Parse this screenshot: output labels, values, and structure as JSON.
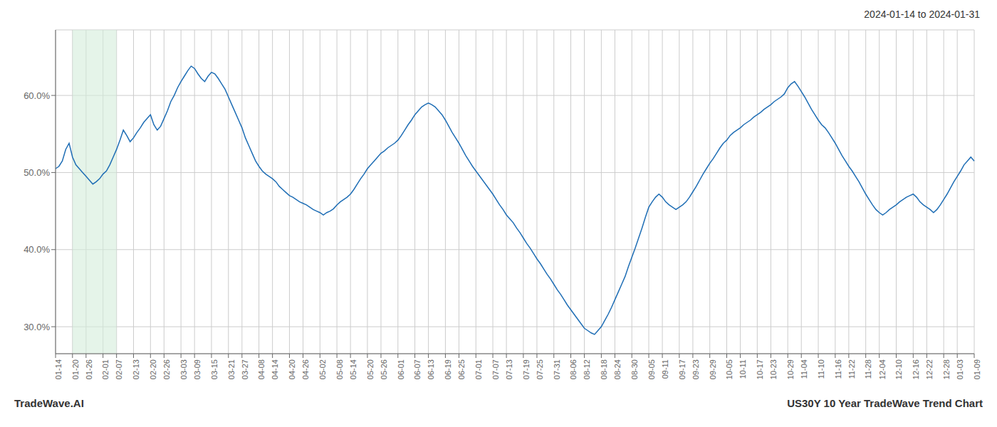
{
  "chart_data": {
    "type": "line",
    "title": "2024-01-14 to 2024-01-31",
    "annotations": [
      "TradeWave.AI",
      "US30Y 10 Year TradeWave Trend Chart"
    ],
    "color": "#1f6eb5",
    "shade": {
      "start": "01-20",
      "end": "02-07",
      "color": "#d4edda"
    },
    "ylim": [
      0.265,
      0.685
    ],
    "yticks": [
      {
        "value": 0.3,
        "label": "30.0%"
      },
      {
        "value": 0.4,
        "label": "40.0%"
      },
      {
        "value": 0.5,
        "label": "50.0%"
      },
      {
        "value": 0.6,
        "label": "60.0%"
      }
    ],
    "grid": true,
    "categories": [
      "01-14",
      null,
      null,
      null,
      null,
      "01-20",
      null,
      null,
      null,
      "01-26",
      null,
      null,
      null,
      null,
      "02-01",
      null,
      null,
      null,
      "02-07",
      null,
      null,
      null,
      null,
      "02-13",
      null,
      null,
      null,
      null,
      "02-20",
      null,
      null,
      null,
      "02-26",
      null,
      null,
      null,
      null,
      "03-03",
      null,
      null,
      null,
      "03-09",
      null,
      null,
      null,
      null,
      "03-15",
      null,
      null,
      null,
      null,
      "03-21",
      null,
      null,
      null,
      "03-27",
      null,
      null,
      null,
      null,
      "04-08",
      null,
      null,
      null,
      "04-14",
      null,
      null,
      null,
      null,
      "04-20",
      null,
      null,
      null,
      "04-26",
      null,
      null,
      null,
      null,
      "05-02",
      null,
      null,
      null,
      null,
      "05-08",
      null,
      null,
      null,
      "05-14",
      null,
      null,
      null,
      null,
      "05-20",
      null,
      null,
      null,
      "05-26",
      null,
      null,
      null,
      null,
      "06-01",
      null,
      null,
      null,
      null,
      "06-07",
      null,
      null,
      null,
      "06-13",
      null,
      null,
      null,
      null,
      "06-19",
      null,
      null,
      null,
      "06-25",
      null,
      null,
      null,
      null,
      "07-01",
      null,
      null,
      null,
      null,
      "07-07",
      null,
      null,
      null,
      "07-13",
      null,
      null,
      null,
      null,
      "07-19",
      null,
      null,
      null,
      "07-25",
      null,
      null,
      null,
      null,
      "07-31",
      null,
      null,
      null,
      null,
      "08-06",
      null,
      null,
      null,
      "08-12",
      null,
      null,
      null,
      null,
      "08-18",
      null,
      null,
      null,
      "08-24",
      null,
      null,
      null,
      null,
      "08-30",
      null,
      null,
      null,
      null,
      "09-05",
      null,
      null,
      null,
      "09-11",
      null,
      null,
      null,
      null,
      "09-17",
      null,
      null,
      null,
      "09-23",
      null,
      null,
      null,
      null,
      "09-29",
      null,
      null,
      null,
      null,
      "10-05",
      null,
      null,
      null,
      "10-11",
      null,
      null,
      null,
      null,
      "10-17",
      null,
      null,
      null,
      "10-23",
      null,
      null,
      null,
      null,
      "10-29",
      null,
      null,
      null,
      "11-04",
      null,
      null,
      null,
      null,
      "11-10",
      null,
      null,
      null,
      null,
      "11-16",
      null,
      null,
      null,
      "11-22",
      null,
      null,
      null,
      null,
      "11-28",
      null,
      null,
      null,
      "12-04",
      null,
      null,
      null,
      null,
      "12-10",
      null,
      null,
      null,
      null,
      "12-16",
      null,
      null,
      null,
      "12-22",
      null,
      null,
      null,
      null,
      "12-28",
      null,
      null,
      null,
      "01-03",
      null,
      null,
      null,
      null,
      "01-09"
    ],
    "values": [
      0.505,
      0.508,
      0.515,
      0.53,
      0.538,
      0.52,
      0.51,
      0.505,
      0.5,
      0.495,
      0.49,
      0.485,
      0.488,
      0.492,
      0.498,
      0.502,
      0.51,
      0.52,
      0.53,
      0.542,
      0.555,
      0.548,
      0.54,
      0.545,
      0.552,
      0.558,
      0.565,
      0.57,
      0.575,
      0.562,
      0.555,
      0.56,
      0.57,
      0.58,
      0.592,
      0.6,
      0.61,
      0.618,
      0.625,
      0.632,
      0.638,
      0.635,
      0.628,
      0.622,
      0.618,
      0.625,
      0.63,
      0.628,
      0.622,
      0.615,
      0.608,
      0.598,
      0.588,
      0.578,
      0.568,
      0.558,
      0.545,
      0.535,
      0.525,
      0.515,
      0.508,
      0.502,
      0.498,
      0.495,
      0.492,
      0.488,
      0.482,
      0.478,
      0.474,
      0.47,
      0.468,
      0.465,
      0.462,
      0.46,
      0.458,
      0.455,
      0.452,
      0.45,
      0.448,
      0.445,
      0.448,
      0.45,
      0.453,
      0.458,
      0.462,
      0.465,
      0.468,
      0.472,
      0.478,
      0.485,
      0.492,
      0.498,
      0.505,
      0.51,
      0.515,
      0.52,
      0.525,
      0.528,
      0.532,
      0.535,
      0.538,
      0.542,
      0.548,
      0.555,
      0.562,
      0.568,
      0.575,
      0.58,
      0.585,
      0.588,
      0.59,
      0.588,
      0.585,
      0.58,
      0.575,
      0.568,
      0.56,
      0.552,
      0.545,
      0.538,
      0.53,
      0.522,
      0.515,
      0.508,
      0.502,
      0.496,
      0.49,
      0.484,
      0.478,
      0.472,
      0.465,
      0.458,
      0.452,
      0.445,
      0.44,
      0.435,
      0.428,
      0.422,
      0.415,
      0.408,
      0.402,
      0.395,
      0.388,
      0.382,
      0.375,
      0.368,
      0.362,
      0.355,
      0.348,
      0.342,
      0.335,
      0.328,
      0.322,
      0.316,
      0.31,
      0.304,
      0.298,
      0.295,
      0.292,
      0.29,
      0.295,
      0.3,
      0.308,
      0.316,
      0.325,
      0.335,
      0.345,
      0.355,
      0.365,
      0.378,
      0.39,
      0.402,
      0.415,
      0.428,
      0.442,
      0.455,
      0.462,
      0.468,
      0.472,
      0.468,
      0.462,
      0.458,
      0.455,
      0.452,
      0.455,
      0.458,
      0.462,
      0.468,
      0.475,
      0.482,
      0.49,
      0.498,
      0.505,
      0.512,
      0.518,
      0.525,
      0.532,
      0.538,
      0.542,
      0.548,
      0.552,
      0.555,
      0.558,
      0.562,
      0.565,
      0.568,
      0.572,
      0.575,
      0.578,
      0.582,
      0.585,
      0.588,
      0.592,
      0.595,
      0.598,
      0.602,
      0.61,
      0.615,
      0.618,
      0.612,
      0.605,
      0.598,
      0.59,
      0.582,
      0.575,
      0.568,
      0.562,
      0.558,
      0.552,
      0.545,
      0.538,
      0.53,
      0.522,
      0.515,
      0.508,
      0.502,
      0.495,
      0.488,
      0.48,
      0.472,
      0.465,
      0.458,
      0.452,
      0.448,
      0.445,
      0.448,
      0.452,
      0.455,
      0.458,
      0.462,
      0.465,
      0.468,
      0.47,
      0.472,
      0.468,
      0.462,
      0.458,
      0.455,
      0.452,
      0.448,
      0.452,
      0.458,
      0.465,
      0.472,
      0.48,
      0.488,
      0.495,
      0.502,
      0.51,
      0.515,
      0.52,
      0.515
    ]
  }
}
